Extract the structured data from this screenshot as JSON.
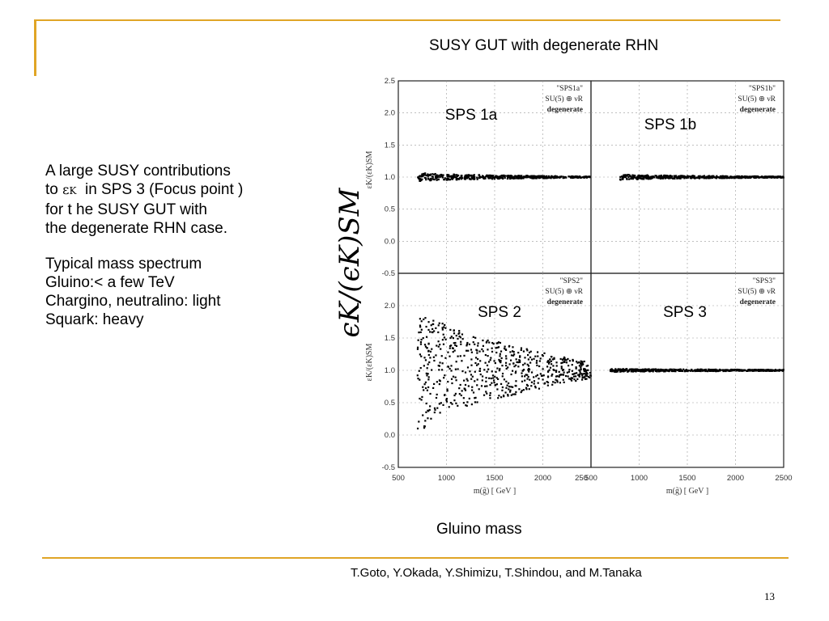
{
  "slide": {
    "title": "SUSY GUT with degenerate RHN",
    "paragraph1": [
      "A large SUSY contributions",
      "in SPS 3 (Focus point )",
      "for t he SUSY GUT with",
      "the degenerate RHN case."
    ],
    "paragraph1_prefix": "to",
    "epsilon_symbol": "ε",
    "epsilon_sub": "K",
    "paragraph2": [
      "Typical mass spectrum",
      "Gluino:< a few TeV",
      "Chargino, neutralino: light",
      "Squark: heavy"
    ],
    "y_axis_big_label": "ϵK/(ϵK)SM",
    "x_axis_label": "Gluino mass",
    "citation": "T.Goto, Y.Okada, Y.Shimizu, T.Shindou, and M.Tanaka",
    "page_number": "13"
  },
  "colors": {
    "accent": "#e0a526",
    "points": "#000000"
  },
  "chart_data": [
    {
      "type": "scatter",
      "panel_label": "SPS 1a",
      "legend": [
        "\"SPS1a\"",
        "SU(5) ⊕ νR",
        "degenerate"
      ],
      "xlim": [
        500,
        2500
      ],
      "ylim": [
        -0.5,
        2.5
      ],
      "xticks": [
        500,
        1000,
        1500,
        2000,
        2500
      ],
      "yticks": [
        "2.5",
        "2.0",
        "1.5",
        "1.0",
        "0.5",
        "0.0",
        "-0.5"
      ],
      "ylabel": "εK/(εK)SM",
      "series": [
        {
          "x_range": [
            700,
            2500
          ],
          "y_center": 1.0,
          "y_spread_start": 0.08,
          "y_spread_end": 0.01
        }
      ]
    },
    {
      "type": "scatter",
      "panel_label": "SPS 1b",
      "legend": [
        "\"SPS1b\"",
        "SU(5) ⊕ νR",
        "degenerate"
      ],
      "xlim": [
        500,
        2500
      ],
      "ylim": [
        -0.5,
        2.5
      ],
      "xticks": [
        500,
        1000,
        1500,
        2000,
        2500
      ],
      "yticks": [],
      "series": [
        {
          "x_range": [
            800,
            2500
          ],
          "y_center": 1.0,
          "y_spread_start": 0.05,
          "y_spread_end": 0.01
        }
      ]
    },
    {
      "type": "scatter",
      "panel_label": "SPS 2",
      "legend": [
        "\"SPS2\"",
        "SU(5) ⊕ νR",
        "degenerate"
      ],
      "xlim": [
        500,
        2500
      ],
      "ylim": [
        -0.5,
        2.5
      ],
      "xticks": [
        500,
        1000,
        1500,
        2000,
        2500
      ],
      "yticks": [
        "2.0",
        "1.5",
        "1.0",
        "0.5",
        "0.0",
        "-0.5"
      ],
      "ylabel": "εK/(εK)SM",
      "xlabel": "m(g̃) [ GeV ]",
      "series": [
        {
          "x_range": [
            700,
            2500
          ],
          "y_center": 1.0,
          "y_spread_start": 1.05,
          "y_spread_end": 0.12
        }
      ]
    },
    {
      "type": "scatter",
      "panel_label": "SPS 3",
      "legend": [
        "\"SPS3\"",
        "SU(5) ⊕ νR",
        "degenerate"
      ],
      "xlim": [
        500,
        2500
      ],
      "ylim": [
        -0.5,
        2.5
      ],
      "xticks": [
        "500",
        "1000",
        "1500",
        "2000",
        "2500"
      ],
      "yticks": [],
      "xlabel": "m(g̃) [ GeV ]",
      "series": [
        {
          "x_range": [
            700,
            2500
          ],
          "y_center": 1.0,
          "y_spread_start": 0.03,
          "y_spread_end": 0.01
        }
      ]
    }
  ]
}
